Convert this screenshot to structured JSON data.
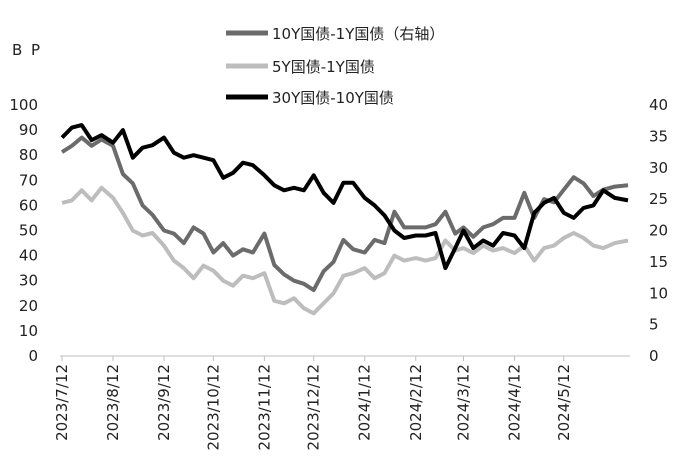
{
  "chart_data": {
    "type": "line",
    "unit_label": "B P",
    "ylim_left": [
      0,
      100
    ],
    "ylim_right": [
      0,
      40
    ],
    "yticks_left": [
      "0",
      "10",
      "20",
      "30",
      "40",
      "50",
      "60",
      "70",
      "80",
      "90",
      "100"
    ],
    "yticks_right": [
      "0",
      "5",
      "10",
      "15",
      "20",
      "25",
      "30",
      "35",
      "40"
    ],
    "xlim": [
      "2023-07-12",
      "2024-06-20"
    ],
    "x_ticks": [
      {
        "date": "2023-07-12",
        "label": "2023/7/12"
      },
      {
        "date": "2023-08-12",
        "label": "2023/8/12"
      },
      {
        "date": "2023-09-12",
        "label": "2023/9/12"
      },
      {
        "date": "2023-10-12",
        "label": "2023/10/12"
      },
      {
        "date": "2023-11-12",
        "label": "2023/11/12"
      },
      {
        "date": "2023-12-12",
        "label": "2023/12/12"
      },
      {
        "date": "2024-01-12",
        "label": "2024/1/12"
      },
      {
        "date": "2024-02-12",
        "label": "2024/2/12"
      },
      {
        "date": "2024-03-12",
        "label": "2024/3/12"
      },
      {
        "date": "2024-04-12",
        "label": "2024/4/12"
      },
      {
        "date": "2024-05-12",
        "label": "2024/5/12"
      }
    ],
    "grid": false,
    "legend_position": "top",
    "series": [
      {
        "name": "10Y国债-1Y国债（右轴）",
        "axis": "right",
        "color": "#6b6b6b",
        "points": [
          [
            "2023-07-12",
            32.5
          ],
          [
            "2023-07-18",
            33.5
          ],
          [
            "2023-07-24",
            34.8
          ],
          [
            "2023-07-30",
            33.5
          ],
          [
            "2023-08-05",
            34.5
          ],
          [
            "2023-08-12",
            33.5
          ],
          [
            "2023-08-18",
            29.0
          ],
          [
            "2023-08-24",
            27.5
          ],
          [
            "2023-08-30",
            24.0
          ],
          [
            "2023-09-05",
            22.5
          ],
          [
            "2023-09-12",
            20.0
          ],
          [
            "2023-09-18",
            19.5
          ],
          [
            "2023-09-24",
            18.0
          ],
          [
            "2023-09-30",
            20.5
          ],
          [
            "2023-10-06",
            19.5
          ],
          [
            "2023-10-12",
            16.5
          ],
          [
            "2023-10-18",
            18.0
          ],
          [
            "2023-10-24",
            16.0
          ],
          [
            "2023-10-30",
            17.0
          ],
          [
            "2023-11-05",
            16.5
          ],
          [
            "2023-11-12",
            19.5
          ],
          [
            "2023-11-18",
            14.5
          ],
          [
            "2023-11-24",
            13.0
          ],
          [
            "2023-11-30",
            12.0
          ],
          [
            "2023-12-06",
            11.5
          ],
          [
            "2023-12-12",
            10.5
          ],
          [
            "2023-12-18",
            13.5
          ],
          [
            "2023-12-24",
            15.0
          ],
          [
            "2023-12-30",
            18.5
          ],
          [
            "2024-01-05",
            17.0
          ],
          [
            "2024-01-12",
            16.5
          ],
          [
            "2024-01-18",
            18.5
          ],
          [
            "2024-01-24",
            18.0
          ],
          [
            "2024-01-30",
            23.0
          ],
          [
            "2024-02-05",
            20.5
          ],
          [
            "2024-02-12",
            20.5
          ],
          [
            "2024-02-18",
            20.5
          ],
          [
            "2024-02-24",
            21.0
          ],
          [
            "2024-03-01",
            23.0
          ],
          [
            "2024-03-07",
            19.5
          ],
          [
            "2024-03-12",
            20.5
          ],
          [
            "2024-03-18",
            19.0
          ],
          [
            "2024-03-24",
            20.5
          ],
          [
            "2024-03-30",
            21.0
          ],
          [
            "2024-04-05",
            22.0
          ],
          [
            "2024-04-12",
            22.0
          ],
          [
            "2024-04-18",
            26.0
          ],
          [
            "2024-04-24",
            22.0
          ],
          [
            "2024-04-30",
            25.0
          ],
          [
            "2024-05-06",
            24.5
          ],
          [
            "2024-05-12",
            26.5
          ],
          [
            "2024-05-18",
            28.5
          ],
          [
            "2024-05-24",
            27.5
          ],
          [
            "2024-05-30",
            25.5
          ],
          [
            "2024-06-05",
            26.5
          ],
          [
            "2024-06-12",
            27.0
          ],
          [
            "2024-06-20",
            27.2
          ]
        ]
      },
      {
        "name": "5Y国债-1Y国债",
        "axis": "left",
        "color": "#bdbdbd",
        "points": [
          [
            "2023-07-12",
            61
          ],
          [
            "2023-07-18",
            62
          ],
          [
            "2023-07-24",
            66
          ],
          [
            "2023-07-30",
            62
          ],
          [
            "2023-08-05",
            67
          ],
          [
            "2023-08-12",
            63
          ],
          [
            "2023-08-18",
            57
          ],
          [
            "2023-08-24",
            50
          ],
          [
            "2023-08-30",
            48
          ],
          [
            "2023-09-05",
            49
          ],
          [
            "2023-09-12",
            44
          ],
          [
            "2023-09-18",
            38
          ],
          [
            "2023-09-24",
            35
          ],
          [
            "2023-09-30",
            31
          ],
          [
            "2023-10-06",
            36
          ],
          [
            "2023-10-12",
            34
          ],
          [
            "2023-10-18",
            30
          ],
          [
            "2023-10-24",
            28
          ],
          [
            "2023-10-30",
            32
          ],
          [
            "2023-11-05",
            31
          ],
          [
            "2023-11-12",
            33
          ],
          [
            "2023-11-18",
            22
          ],
          [
            "2023-11-24",
            21
          ],
          [
            "2023-11-30",
            23
          ],
          [
            "2023-12-06",
            19
          ],
          [
            "2023-12-12",
            17
          ],
          [
            "2023-12-18",
            21
          ],
          [
            "2023-12-24",
            25
          ],
          [
            "2023-12-30",
            32
          ],
          [
            "2024-01-05",
            33
          ],
          [
            "2024-01-12",
            35
          ],
          [
            "2024-01-18",
            31
          ],
          [
            "2024-01-24",
            33
          ],
          [
            "2024-01-30",
            40
          ],
          [
            "2024-02-05",
            38
          ],
          [
            "2024-02-12",
            39
          ],
          [
            "2024-02-18",
            38
          ],
          [
            "2024-02-24",
            39
          ],
          [
            "2024-03-01",
            46
          ],
          [
            "2024-03-07",
            42
          ],
          [
            "2024-03-12",
            43
          ],
          [
            "2024-03-18",
            41
          ],
          [
            "2024-03-24",
            44
          ],
          [
            "2024-03-30",
            42
          ],
          [
            "2024-04-05",
            43
          ],
          [
            "2024-04-12",
            41
          ],
          [
            "2024-04-18",
            44
          ],
          [
            "2024-04-24",
            38
          ],
          [
            "2024-04-30",
            43
          ],
          [
            "2024-05-06",
            44
          ],
          [
            "2024-05-12",
            47
          ],
          [
            "2024-05-18",
            49
          ],
          [
            "2024-05-24",
            47
          ],
          [
            "2024-05-30",
            44
          ],
          [
            "2024-06-05",
            43
          ],
          [
            "2024-06-12",
            45
          ],
          [
            "2024-06-20",
            46
          ]
        ]
      },
      {
        "name": "30Y国债-10Y国债",
        "axis": "left",
        "color": "#000000",
        "points": [
          [
            "2023-07-12",
            87
          ],
          [
            "2023-07-18",
            91
          ],
          [
            "2023-07-24",
            92
          ],
          [
            "2023-07-30",
            86
          ],
          [
            "2023-08-05",
            88
          ],
          [
            "2023-08-12",
            85
          ],
          [
            "2023-08-18",
            90
          ],
          [
            "2023-08-24",
            79
          ],
          [
            "2023-08-30",
            83
          ],
          [
            "2023-09-05",
            84
          ],
          [
            "2023-09-12",
            87
          ],
          [
            "2023-09-18",
            81
          ],
          [
            "2023-09-24",
            79
          ],
          [
            "2023-09-30",
            80
          ],
          [
            "2023-10-06",
            79
          ],
          [
            "2023-10-12",
            78
          ],
          [
            "2023-10-18",
            71
          ],
          [
            "2023-10-24",
            73
          ],
          [
            "2023-10-30",
            77
          ],
          [
            "2023-11-05",
            76
          ],
          [
            "2023-11-12",
            72
          ],
          [
            "2023-11-18",
            68
          ],
          [
            "2023-11-24",
            66
          ],
          [
            "2023-11-30",
            67
          ],
          [
            "2023-12-06",
            66
          ],
          [
            "2023-12-12",
            72
          ],
          [
            "2023-12-18",
            65
          ],
          [
            "2023-12-24",
            61
          ],
          [
            "2023-12-30",
            69
          ],
          [
            "2024-01-05",
            69
          ],
          [
            "2024-01-12",
            63
          ],
          [
            "2024-01-18",
            60
          ],
          [
            "2024-01-24",
            56
          ],
          [
            "2024-01-30",
            50
          ],
          [
            "2024-02-05",
            47
          ],
          [
            "2024-02-12",
            48
          ],
          [
            "2024-02-18",
            48
          ],
          [
            "2024-02-24",
            49
          ],
          [
            "2024-03-01",
            35
          ],
          [
            "2024-03-07",
            43
          ],
          [
            "2024-03-12",
            50
          ],
          [
            "2024-03-18",
            43
          ],
          [
            "2024-03-24",
            46
          ],
          [
            "2024-03-30",
            44
          ],
          [
            "2024-04-05",
            49
          ],
          [
            "2024-04-12",
            48
          ],
          [
            "2024-04-18",
            43
          ],
          [
            "2024-04-24",
            57
          ],
          [
            "2024-04-30",
            61
          ],
          [
            "2024-05-06",
            63
          ],
          [
            "2024-05-12",
            57
          ],
          [
            "2024-05-18",
            55
          ],
          [
            "2024-05-24",
            59
          ],
          [
            "2024-05-30",
            60
          ],
          [
            "2024-06-05",
            66
          ],
          [
            "2024-06-12",
            63
          ],
          [
            "2024-06-20",
            62
          ]
        ]
      }
    ]
  }
}
